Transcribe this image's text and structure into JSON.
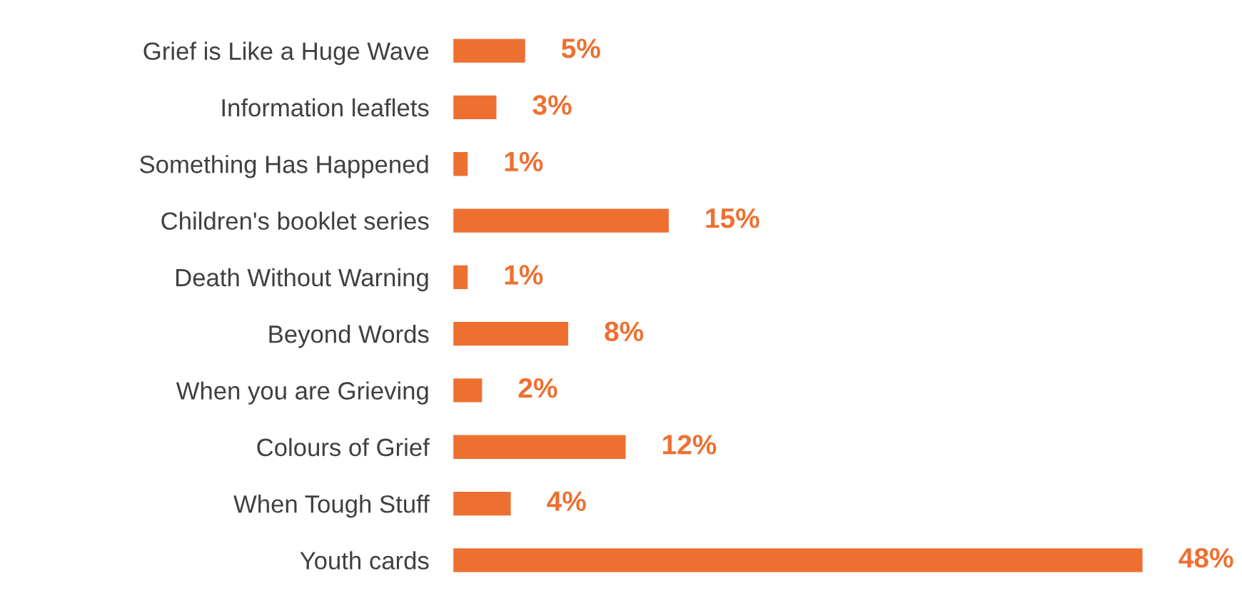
{
  "chart_data": {
    "type": "bar",
    "orientation": "horizontal",
    "categories": [
      "Grief is Like a Huge Wave",
      "Information leaflets",
      "Something Has Happened",
      "Children's booklet series",
      "Death Without Warning",
      "Beyond Words",
      "When you are Grieving",
      "Colours of Grief",
      "When Tough Stuff",
      "Youth cards"
    ],
    "values": [
      5,
      3,
      1,
      15,
      1,
      8,
      2,
      12,
      4,
      48
    ],
    "value_labels": [
      "5%",
      "3%",
      "1%",
      "15%",
      "1%",
      "8%",
      "2%",
      "12%",
      "4%",
      "48%"
    ],
    "color": "#ed7031",
    "tick_labels": "y",
    "grid": false,
    "legend": false
  }
}
